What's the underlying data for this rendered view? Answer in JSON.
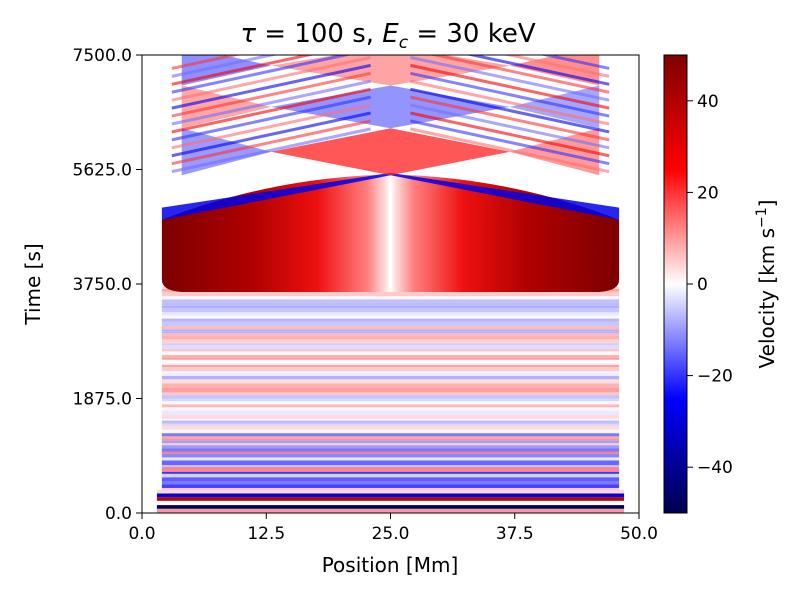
{
  "chart_data": {
    "type": "heatmap",
    "title": "τ = 100 s, E_c = 30 keV",
    "title_parts": {
      "tau": "τ",
      "tau_rest": " = 100 s, ",
      "e": "E",
      "e_sub": "c",
      "e_rest": " = 30 keV"
    },
    "xlabel": "Position [Mm]",
    "ylabel": "Time [s]",
    "xlim": [
      0,
      50
    ],
    "ylim": [
      0,
      7500
    ],
    "x_ticks": [
      0,
      12.5,
      25,
      37.5,
      50
    ],
    "x_tick_labels": [
      "0.0",
      "12.5",
      "25.0",
      "37.5",
      "50.0"
    ],
    "y_ticks": [
      0,
      1875,
      3750,
      5625,
      7500
    ],
    "y_tick_labels": [
      "0.0",
      "1875.0",
      "3750.0",
      "5625.0",
      "7500.0"
    ],
    "colorbar": {
      "label": "Velocity [km s⁻¹]",
      "label_parts": {
        "main": "Velocity [km s",
        "sup": "−1",
        "close": "]"
      },
      "range": [
        -50,
        50
      ],
      "ticks": [
        -40,
        -20,
        0,
        20,
        40
      ],
      "tick_labels": [
        "−40",
        "−20",
        "0",
        "20",
        "40"
      ],
      "colormap": "seismic"
    },
    "colors": {
      "min": "#00004c",
      "neg": "#0000ff",
      "zero": "#ffffff",
      "pos": "#ff0000",
      "max": "#800000"
    },
    "features": {
      "loop_x_range": [
        2,
        48
      ],
      "apex_x": 25,
      "upflow_time_range": [
        3700,
        5400
      ],
      "upflow_peak_velocity": 50,
      "crossing_times": [
        5530,
        6300,
        7000
      ]
    }
  }
}
